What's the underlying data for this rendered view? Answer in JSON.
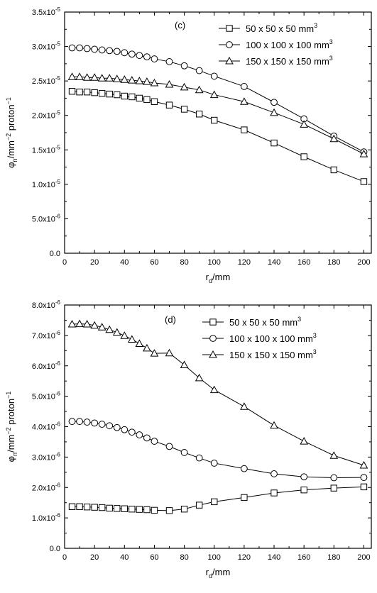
{
  "chart_data": [
    {
      "type": "line",
      "panel_label": "(c)",
      "xlabel": {
        "main": "r",
        "sub": "d",
        "unit": "/mm"
      },
      "ylabel": {
        "main": "φ",
        "sub": "n",
        "mid": "/mm",
        "sup1": "−2",
        "mid2": " proton",
        "sup2": "−1"
      },
      "xlim": [
        0,
        205
      ],
      "ylim": [
        0,
        3.5e-05
      ],
      "xticks": [
        0,
        20,
        40,
        60,
        80,
        100,
        120,
        140,
        160,
        180,
        200
      ],
      "xtick_labels": [
        "0",
        "20",
        "40",
        "60",
        "80",
        "100",
        "120",
        "140",
        "160",
        "180",
        "200"
      ],
      "yticks": [
        0,
        5e-06,
        1e-05,
        1.5e-05,
        2e-05,
        2.5e-05,
        3e-05,
        3.5e-05
      ],
      "ytick_labels": [
        {
          "base": "0.0",
          "exp": ""
        },
        {
          "base": "5.0x10",
          "exp": "-6"
        },
        {
          "base": "1.0x10",
          "exp": "-5"
        },
        {
          "base": "1.5x10",
          "exp": "-5"
        },
        {
          "base": "2.0x10",
          "exp": "-5"
        },
        {
          "base": "2.5x10",
          "exp": "-5"
        },
        {
          "base": "3.0x10",
          "exp": "-5"
        },
        {
          "base": "3.5x10",
          "exp": "-5"
        }
      ],
      "legend_position": "top-right",
      "x": [
        5,
        10,
        15,
        20,
        25,
        30,
        35,
        40,
        45,
        50,
        55,
        60,
        70,
        80,
        90,
        100,
        120,
        140,
        160,
        180,
        200
      ],
      "series": [
        {
          "name": "50 x 50 x 50 mm",
          "name_sup": "3",
          "marker": "square",
          "values": [
            2.35e-05,
            2.34e-05,
            2.34e-05,
            2.33e-05,
            2.32e-05,
            2.31e-05,
            2.3e-05,
            2.28e-05,
            2.27e-05,
            2.25e-05,
            2.23e-05,
            2.2e-05,
            2.15e-05,
            2.09e-05,
            2.02e-05,
            1.93e-05,
            1.79e-05,
            1.6e-05,
            1.4e-05,
            1.21e-05,
            1.04e-05
          ]
        },
        {
          "name": "100 x 100 x 100 mm",
          "name_sup": "3",
          "marker": "circle",
          "values": [
            2.98e-05,
            2.98e-05,
            2.97e-05,
            2.96e-05,
            2.95e-05,
            2.94e-05,
            2.93e-05,
            2.91e-05,
            2.89e-05,
            2.87e-05,
            2.85e-05,
            2.82e-05,
            2.78e-05,
            2.72e-05,
            2.65e-05,
            2.57e-05,
            2.42e-05,
            2.19e-05,
            1.95e-05,
            1.7e-05,
            1.47e-05
          ]
        },
        {
          "name": "150 x 150 x 150 mm",
          "name_sup": "3",
          "marker": "triangle",
          "values": [
            2.56e-05,
            2.56e-05,
            2.55e-05,
            2.55e-05,
            2.54e-05,
            2.54e-05,
            2.53e-05,
            2.52e-05,
            2.51e-05,
            2.5e-05,
            2.49e-05,
            2.47e-05,
            2.45e-05,
            2.41e-05,
            2.37e-05,
            2.3e-05,
            2.2e-05,
            2.04e-05,
            1.87e-05,
            1.66e-05,
            1.44e-05
          ]
        }
      ]
    },
    {
      "type": "line",
      "panel_label": "(d)",
      "xlabel": {
        "main": "r",
        "sub": "d",
        "unit": "/mm"
      },
      "ylabel": {
        "main": "φ",
        "sub": "n",
        "mid": "/mm",
        "sup1": "−2",
        "mid2": " proton",
        "sup2": "−1"
      },
      "xlim": [
        0,
        205
      ],
      "ylim": [
        0,
        8e-06
      ],
      "xticks": [
        0,
        20,
        40,
        60,
        80,
        100,
        120,
        140,
        160,
        180,
        200
      ],
      "xtick_labels": [
        "0",
        "20",
        "40",
        "60",
        "80",
        "100",
        "120",
        "140",
        "160",
        "180",
        "200"
      ],
      "yticks": [
        0,
        1e-06,
        2e-06,
        3e-06,
        4e-06,
        5e-06,
        6e-06,
        7e-06,
        8e-06
      ],
      "ytick_labels": [
        {
          "base": "0.0",
          "exp": ""
        },
        {
          "base": "1.0x10",
          "exp": "-6"
        },
        {
          "base": "2.0x10",
          "exp": "-6"
        },
        {
          "base": "3.0x10",
          "exp": "-6"
        },
        {
          "base": "4.0x10",
          "exp": "-6"
        },
        {
          "base": "5.0x10",
          "exp": "-6"
        },
        {
          "base": "6.0x10",
          "exp": "-6"
        },
        {
          "base": "7.0x10",
          "exp": "-6"
        },
        {
          "base": "8.0x10",
          "exp": "-6"
        }
      ],
      "legend_position": "top-right",
      "x": [
        5,
        10,
        15,
        20,
        25,
        30,
        35,
        40,
        45,
        50,
        55,
        60,
        70,
        80,
        90,
        100,
        120,
        140,
        160,
        180,
        200
      ],
      "series": [
        {
          "name": "50 x 50 x 50 mm",
          "name_sup": "3",
          "marker": "square",
          "values": [
            1.37e-06,
            1.37e-06,
            1.36e-06,
            1.35e-06,
            1.34e-06,
            1.32e-06,
            1.31e-06,
            1.3e-06,
            1.29e-06,
            1.28e-06,
            1.27e-06,
            1.25e-06,
            1.24e-06,
            1.29e-06,
            1.42e-06,
            1.53e-06,
            1.67e-06,
            1.82e-06,
            1.92e-06,
            1.98e-06,
            2.02e-06
          ]
        },
        {
          "name": "100 x 100 x 100 mm",
          "name_sup": "3",
          "marker": "circle",
          "values": [
            4.17e-06,
            4.17e-06,
            4.15e-06,
            4.12e-06,
            4.08e-06,
            4.03e-06,
            3.97e-06,
            3.9e-06,
            3.82e-06,
            3.73e-06,
            3.63e-06,
            3.52e-06,
            3.35e-06,
            3.15e-06,
            2.97e-06,
            2.8e-06,
            2.62e-06,
            2.45e-06,
            2.35e-06,
            2.32e-06,
            2.33e-06
          ]
        },
        {
          "name": "150 x 150 x 150 mm",
          "name_sup": "3",
          "marker": "triangle",
          "values": [
            7.37e-06,
            7.38e-06,
            7.37e-06,
            7.33e-06,
            7.27e-06,
            7.19e-06,
            7.1e-06,
            6.99e-06,
            6.87e-06,
            6.73e-06,
            6.58e-06,
            6.41e-06,
            6.42e-06,
            6.03e-06,
            5.6e-06,
            5.21e-06,
            4.66e-06,
            4.04e-06,
            3.52e-06,
            3.05e-06,
            2.73e-06
          ]
        }
      ]
    }
  ]
}
